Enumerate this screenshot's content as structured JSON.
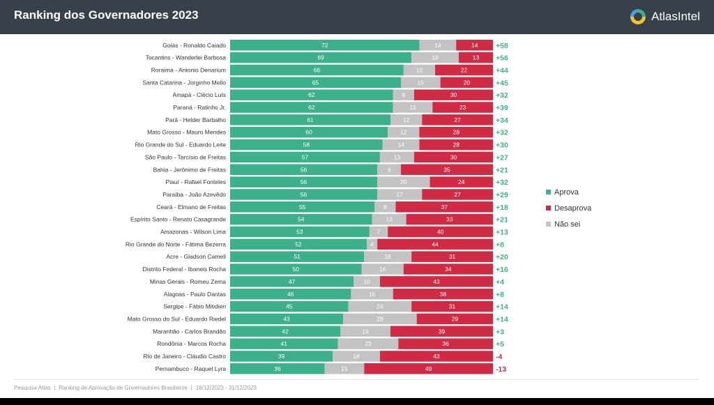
{
  "header": {
    "title": "Ranking dos Governadores 2023",
    "logo_text": "AtlasIntel"
  },
  "colors": {
    "approve": "#3cb08b",
    "unsure": "#c3c3c3",
    "disapprove": "#d02a44",
    "net_positive": "#3cb08b",
    "net_negative": "#d02a44"
  },
  "legend": {
    "approve": "Aprova",
    "disapprove": "Desaprova",
    "unsure": "Não sei"
  },
  "footer": {
    "source": "Pesquisa Atlas",
    "description": "Ranking de Aprovação de Governadores Brasileiros",
    "dates": "18/12/2023 - 31/12/2023"
  },
  "chart_data": {
    "type": "bar",
    "orientation": "horizontal",
    "stacked": true,
    "categories": [
      "Goiás - Ronaldo Caiado",
      "Tocantins - Wanderlei Barbosa",
      "Roraima - Antonio Denarium",
      "Santa Catarina - Jorginho Mello",
      "Amapá - Clécio Luís",
      "Paraná - Ratinho Jr.",
      "Pará - Helder Barbalho",
      "Mato Grosso - Mauro Mendes",
      "Rio Grande do Sul - Eduardo Leite",
      "São Paulo - Tarcísio de Freitas",
      "Bahia - Jerônimo de Freitas",
      "Piauí - Rafael Fonteles",
      "Paraíba - João Azevêdo",
      "Ceará - Elmano de Freitas",
      "Espírito Santo - Renato Casagrande",
      "Amazonas - Wilson Lima",
      "Rio Grande do Norte - Fátima Bezerra",
      "Acre - Gladson Cameli",
      "Distrito Federal - Ibaneis Rocha",
      "Minas Gerais - Romeu Zema",
      "Alagoas - Paulo Dantas",
      "Sergipe - Fábio Mitidieri",
      "Mato Grosso do Sul - Eduardo Riedel",
      "Maranhão - Carlos Brandão",
      "Rondônia - Marcos Rocha",
      "Rio de Janeiro - Cláudio Castro",
      "Pernambuco - Raquel Lyra"
    ],
    "series": [
      {
        "name": "Aprova",
        "values": [
          72,
          69,
          66,
          65,
          62,
          62,
          61,
          60,
          58,
          57,
          56,
          56,
          56,
          55,
          54,
          53,
          52,
          51,
          50,
          47,
          46,
          45,
          43,
          42,
          41,
          39,
          36
        ]
      },
      {
        "name": "Não sei",
        "values": [
          14,
          18,
          12,
          15,
          8,
          15,
          12,
          12,
          14,
          13,
          9,
          20,
          17,
          8,
          13,
          7,
          4,
          18,
          16,
          10,
          16,
          24,
          28,
          19,
          23,
          18,
          15
        ]
      },
      {
        "name": "Desaprova",
        "values": [
          14,
          13,
          22,
          20,
          30,
          23,
          27,
          28,
          28,
          30,
          35,
          24,
          27,
          37,
          33,
          40,
          44,
          31,
          34,
          43,
          38,
          31,
          29,
          39,
          36,
          43,
          49
        ]
      }
    ],
    "net": [
      "+58",
      "+56",
      "+44",
      "+45",
      "+32",
      "+39",
      "+34",
      "+32",
      "+30",
      "+27",
      "+21",
      "+32",
      "+29",
      "+18",
      "+21",
      "+13",
      "+8",
      "+20",
      "+16",
      "+4",
      "+8",
      "+14",
      "+14",
      "+3",
      "+5",
      "-4",
      "-13"
    ],
    "xlim": [
      0,
      100
    ],
    "legend_position": "right",
    "grid": false
  }
}
